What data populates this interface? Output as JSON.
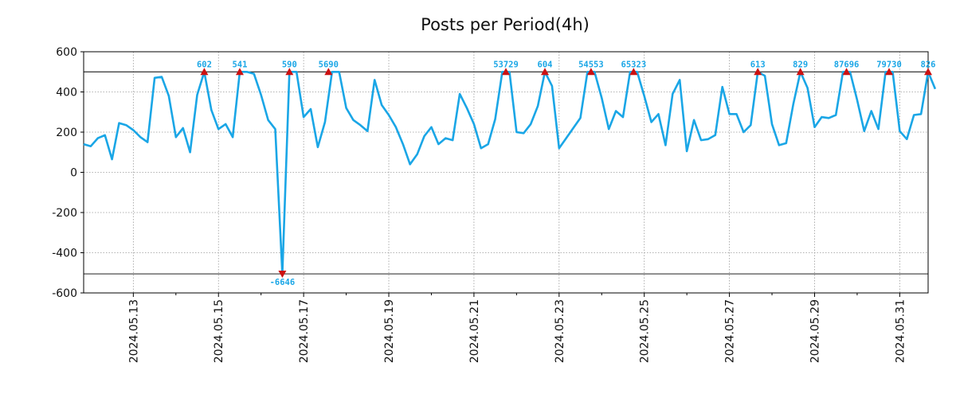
{
  "chart_data": {
    "type": "line",
    "title": "Posts per Period(4h)",
    "xlabel": "",
    "ylabel": "",
    "ylim": [
      -600,
      600
    ],
    "y_ticks": [
      600,
      400,
      200,
      0,
      -200,
      -400,
      -600
    ],
    "y_tick_labels": [
      "600",
      "400",
      "200",
      "0",
      "-200",
      "-400",
      "-600"
    ],
    "x_range": [
      0,
      119
    ],
    "x_ticks": [
      {
        "x": 7.0,
        "label": "2024.05.13"
      },
      {
        "x": 19.0,
        "label": "2024.05.15"
      },
      {
        "x": 31.0,
        "label": "2024.05.17"
      },
      {
        "x": 43.0,
        "label": "2024.05.19"
      },
      {
        "x": 55.0,
        "label": "2024.05.21"
      },
      {
        "x": 67.0,
        "label": "2024.05.23"
      },
      {
        "x": 79.0,
        "label": "2024.05.25"
      },
      {
        "x": 91.0,
        "label": "2024.05.27"
      },
      {
        "x": 103.0,
        "label": "2024.05.29"
      },
      {
        "x": 115.0,
        "label": "2024.05.31"
      }
    ],
    "minor_x_ticks": [
      13,
      25,
      37,
      49,
      61,
      73,
      85,
      97,
      109
    ],
    "clip_upper": 500,
    "clip_lower": -505,
    "grid": true,
    "series": [
      {
        "name": "posts",
        "color": "#1aa6e6",
        "values": [
          140,
          130,
          170,
          185,
          65,
          245,
          235,
          210,
          175,
          150,
          470,
          475,
          380,
          175,
          220,
          100,
          385,
          500,
          310,
          215,
          240,
          175,
          500,
          500,
          490,
          385,
          260,
          215,
          -505,
          500,
          500,
          275,
          315,
          125,
          250,
          500,
          500,
          320,
          260,
          235,
          205,
          460,
          335,
          285,
          225,
          140,
          40,
          90,
          180,
          225,
          140,
          170,
          160,
          390,
          320,
          240,
          120,
          140,
          265,
          500,
          500,
          200,
          195,
          240,
          330,
          500,
          430,
          120,
          170,
          220,
          270,
          500,
          500,
          370,
          215,
          305,
          275,
          500,
          500,
          380,
          250,
          290,
          135,
          390,
          460,
          105,
          260,
          160,
          165,
          185,
          425,
          290,
          290,
          200,
          235,
          500,
          480,
          240,
          135,
          145,
          340,
          500,
          420,
          225,
          275,
          270,
          285,
          500,
          500,
          360,
          205,
          305,
          215,
          500,
          500,
          205,
          165,
          285,
          290,
          500,
          415
        ]
      }
    ],
    "annotations": [
      {
        "x": 17,
        "label": "602",
        "direction": "up"
      },
      {
        "x": 22,
        "label": "541",
        "direction": "up"
      },
      {
        "x": 28,
        "label": "-6646",
        "direction": "down"
      },
      {
        "x": 29,
        "label": "590",
        "direction": "up"
      },
      {
        "x": 34.5,
        "label": "5690",
        "direction": "up"
      },
      {
        "x": 59.5,
        "label": "53729",
        "direction": "up"
      },
      {
        "x": 65,
        "label": "604",
        "direction": "up"
      },
      {
        "x": 71.5,
        "label": "54553",
        "direction": "up"
      },
      {
        "x": 77.5,
        "label": "65323",
        "direction": "up"
      },
      {
        "x": 95,
        "label": "613",
        "direction": "up"
      },
      {
        "x": 101,
        "label": "829",
        "direction": "up"
      },
      {
        "x": 107.5,
        "label": "87696",
        "direction": "up"
      },
      {
        "x": 113.5,
        "label": "79730",
        "direction": "up"
      },
      {
        "x": 119,
        "label": "826",
        "direction": "up"
      }
    ],
    "colors": {
      "line": "#1aa6e6",
      "marker": "#cc1111",
      "peak_text": "#1aa6e6",
      "grid": "#999999",
      "axis": "#000000"
    }
  }
}
